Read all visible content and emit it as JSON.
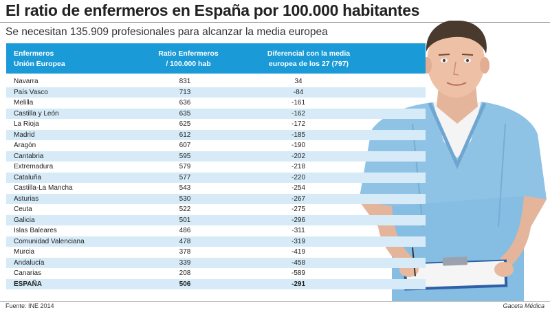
{
  "title": "El ratio de enfermeros en España por 100.000 habitantes",
  "subtitle": "Se necesitan 135.909 profesionales para alcanzar la media europea",
  "table": {
    "headers": {
      "region_line1": "Enfermeros",
      "region_line2": "Unión Europea",
      "ratio_line1": "Ratio Enfermeros",
      "ratio_line2": "/ 100.000 hab",
      "diff_line1": "Diferencial con la media",
      "diff_line2": "europea de los 27 (797)"
    },
    "rows": [
      {
        "region": "Navarra",
        "ratio": "831",
        "diff": "34"
      },
      {
        "region": "País Vasco",
        "ratio": "713",
        "diff": "-84"
      },
      {
        "region": "Melilla",
        "ratio": "636",
        "diff": "-161"
      },
      {
        "region": "Castilla y León",
        "ratio": "635",
        "diff": "-162"
      },
      {
        "region": "La Rioja",
        "ratio": "625",
        "diff": "-172"
      },
      {
        "region": "Madrid",
        "ratio": "612",
        "diff": "-185"
      },
      {
        "region": "Aragón",
        "ratio": "607",
        "diff": "-190"
      },
      {
        "region": "Cantabria",
        "ratio": "595",
        "diff": "-202"
      },
      {
        "region": "Extremadura",
        "ratio": "579",
        "diff": "-218"
      },
      {
        "region": "Cataluña",
        "ratio": "577",
        "diff": "-220"
      },
      {
        "region": "Castilla-La Mancha",
        "ratio": "543",
        "diff": "-254"
      },
      {
        "region": "Asturias",
        "ratio": "530",
        "diff": "-267"
      },
      {
        "region": "Ceuta",
        "ratio": "522",
        "diff": "-275"
      },
      {
        "region": "Galicia",
        "ratio": "501",
        "diff": "-296"
      },
      {
        "region": "Islas Baleares",
        "ratio": "486",
        "diff": "-311"
      },
      {
        "region": "Comunidad Valenciana",
        "ratio": "478",
        "diff": "-319"
      },
      {
        "region": "Murcia",
        "ratio": "378",
        "diff": "-419"
      },
      {
        "region": "Andalucía",
        "ratio": "339",
        "diff": "-458"
      },
      {
        "region": "Canarias",
        "ratio": "208",
        "diff": "-589"
      }
    ],
    "total": {
      "region": "ESPAÑA",
      "ratio": "506",
      "diff": "-291"
    }
  },
  "footer": {
    "source": "Fuente: INE 2014",
    "credit": "Gaceta Médica"
  },
  "colors": {
    "header_bg": "#1a9ad6",
    "row_alt_bg": "#d6ebf7",
    "scrubs": "#8fc3e6"
  },
  "image": {
    "subject": "nurse-in-scrubs-holding-clipboard"
  }
}
